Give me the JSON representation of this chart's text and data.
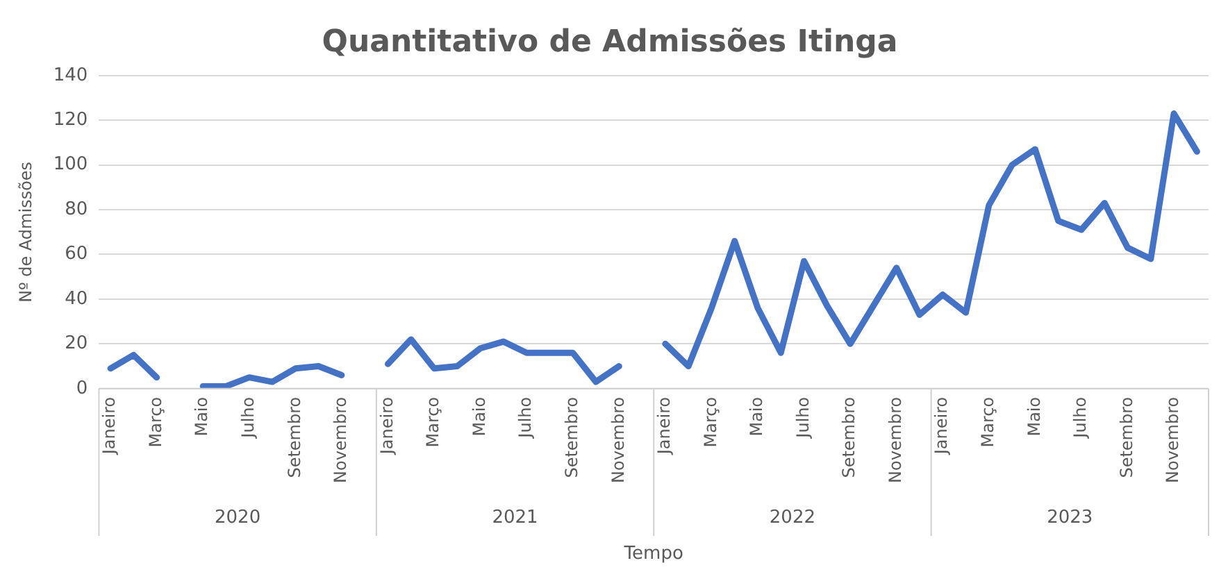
{
  "chart_data": {
    "type": "line",
    "title": "Quantitativo de Admissões Itinga",
    "xlabel": "Tempo",
    "ylabel": "Nº de Admissões",
    "categories": [
      "Janeiro",
      null,
      "Março",
      null,
      "Maio",
      null,
      "Julho",
      null,
      "Setembro",
      null,
      "Novembro",
      null,
      "Janeiro",
      null,
      "Março",
      null,
      "Maio",
      null,
      "Julho",
      null,
      "Setembro",
      null,
      "Novembro",
      null,
      "Janeiro",
      null,
      "Março",
      null,
      "Maio",
      null,
      "Julho",
      null,
      "Setembro",
      null,
      "Novembro",
      null,
      "Janeiro",
      null,
      "Março",
      null,
      "Maio",
      null,
      "Julho",
      null,
      "Setembro",
      null,
      "Novembro",
      null
    ],
    "series": [
      {
        "color": "#4472c4",
        "values": [
          9,
          15,
          5,
          null,
          1,
          1,
          5,
          3,
          9,
          10,
          6,
          null,
          11,
          22,
          9,
          10,
          18,
          21,
          16,
          16,
          16,
          3,
          10,
          null,
          20,
          10,
          36,
          66,
          36,
          16,
          57,
          37,
          20,
          37,
          54,
          33,
          42,
          34,
          82,
          100,
          107,
          75,
          71,
          83,
          63,
          58,
          123,
          106
        ]
      }
    ],
    "annotations": [
      "2020",
      "2021",
      "2022",
      "2023"
    ],
    "ylim": [
      0,
      140
    ],
    "yticks": [
      0,
      20,
      40,
      60,
      80,
      100,
      120,
      140
    ],
    "grid": "y",
    "legend": false,
    "marker": "none",
    "line_style": "solid"
  }
}
